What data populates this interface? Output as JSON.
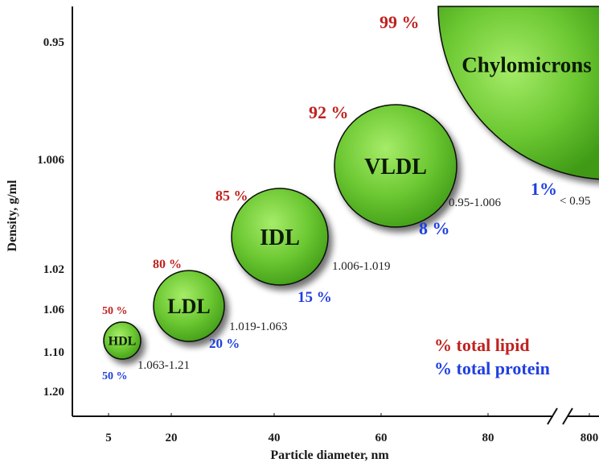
{
  "chart_data": {
    "type": "bubble",
    "xlabel": "Particle diameter, nm",
    "ylabel": "Density, g/ml",
    "x_ticks": [
      "5",
      "20",
      "40",
      "60",
      "80",
      "800"
    ],
    "y_ticks": [
      "0.95",
      "1.006",
      "1.02",
      "1.06",
      "1.10",
      "1.20"
    ],
    "x_axis_break": "between 80 and 800",
    "legend": {
      "lipid": "% total lipid",
      "protein": "% total protein",
      "placement": "bottom-right"
    },
    "particles": [
      {
        "name": "HDL",
        "diameter_tick": "5",
        "density_range": "1.063-1.21",
        "lipid": "50 %",
        "protein": "50 %"
      },
      {
        "name": "LDL",
        "diameter_tick": "20",
        "density_range": "1.019-1.063",
        "lipid": "80 %",
        "protein": "20 %"
      },
      {
        "name": "IDL",
        "diameter_tick": "40",
        "density_range": "1.006-1.019",
        "lipid": "85 %",
        "protein": "15 %"
      },
      {
        "name": "VLDL",
        "diameter_tick": "60",
        "density_range": "0.95-1.006",
        "lipid": "92 %",
        "protein": "8 %"
      },
      {
        "name": "Chylomicrons",
        "diameter_tick": "800",
        "density_range": "< 0.95",
        "lipid": "99 %",
        "protein": "1%"
      }
    ],
    "colors": {
      "bubble_fill": "#6cc832",
      "lipid": "#c0221f",
      "protein": "#1f3fe0"
    }
  }
}
